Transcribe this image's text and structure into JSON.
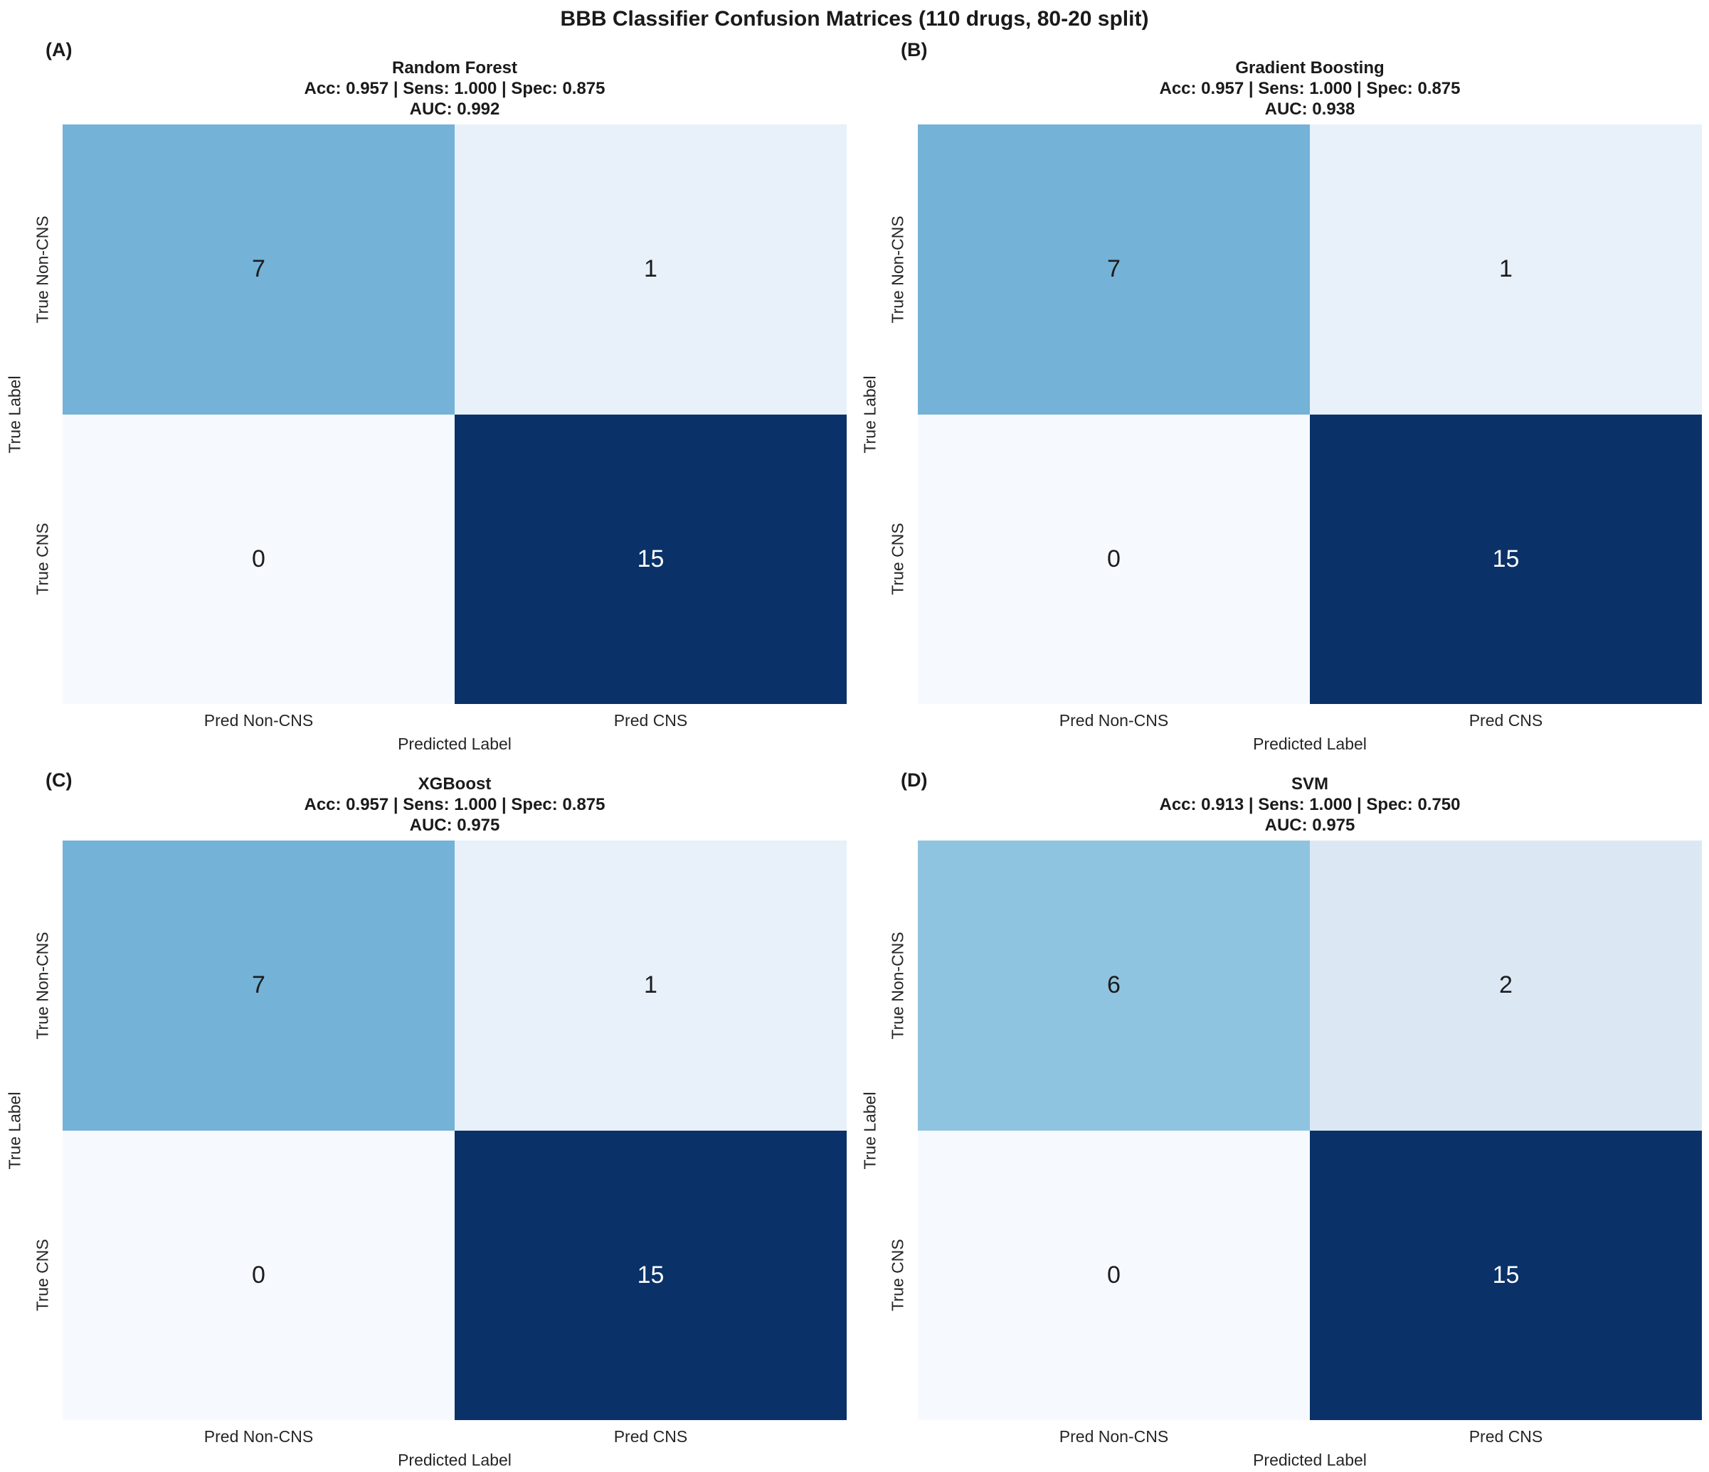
{
  "figure": {
    "title": "BBB Classifier Confusion Matrices (110 drugs, 80-20 split)"
  },
  "axes": {
    "x_ticks": [
      "Pred Non-CNS",
      "Pred CNS"
    ],
    "y_ticks": [
      "True Non-CNS",
      "True CNS"
    ],
    "xlabel": "Predicted Label",
    "ylabel": "True Label"
  },
  "panels": [
    {
      "letter": "(A)",
      "model": "Random Forest",
      "metrics": "Acc: 0.957 | Sens: 1.000 | Spec: 0.875",
      "auc": "AUC: 0.992",
      "cells": [
        {
          "value": "7",
          "bg": "#74b2d7",
          "fg": "#1c1c1c"
        },
        {
          "value": "1",
          "bg": "#e8f0fa",
          "fg": "#1c1c1c"
        },
        {
          "value": "0",
          "bg": "#f6fafe",
          "fg": "#1c1c1c"
        },
        {
          "value": "15",
          "bg": "#0a3168",
          "fg": "#ffffff"
        }
      ]
    },
    {
      "letter": "(B)",
      "model": "Gradient Boosting",
      "metrics": "Acc: 0.957 | Sens: 1.000 | Spec: 0.875",
      "auc": "AUC: 0.938",
      "cells": [
        {
          "value": "7",
          "bg": "#74b2d7",
          "fg": "#1c1c1c"
        },
        {
          "value": "1",
          "bg": "#e8f0fa",
          "fg": "#1c1c1c"
        },
        {
          "value": "0",
          "bg": "#f6fafe",
          "fg": "#1c1c1c"
        },
        {
          "value": "15",
          "bg": "#0a3168",
          "fg": "#ffffff"
        }
      ]
    },
    {
      "letter": "(C)",
      "model": "XGBoost",
      "metrics": "Acc: 0.957 | Sens: 1.000 | Spec: 0.875",
      "auc": "AUC: 0.975",
      "cells": [
        {
          "value": "7",
          "bg": "#74b2d7",
          "fg": "#1c1c1c"
        },
        {
          "value": "1",
          "bg": "#e8f0fa",
          "fg": "#1c1c1c"
        },
        {
          "value": "0",
          "bg": "#f6fafe",
          "fg": "#1c1c1c"
        },
        {
          "value": "15",
          "bg": "#0a3168",
          "fg": "#ffffff"
        }
      ]
    },
    {
      "letter": "(D)",
      "model": "SVM",
      "metrics": "Acc: 0.913 | Sens: 1.000 | Spec: 0.750",
      "auc": "AUC: 0.975",
      "cells": [
        {
          "value": "6",
          "bg": "#8fc4e0",
          "fg": "#1c1c1c"
        },
        {
          "value": "2",
          "bg": "#dbe8f4",
          "fg": "#1c1c1c"
        },
        {
          "value": "0",
          "bg": "#f6fafe",
          "fg": "#1c1c1c"
        },
        {
          "value": "15",
          "bg": "#0a3168",
          "fg": "#ffffff"
        }
      ]
    }
  ],
  "chart_data": [
    {
      "type": "heatmap",
      "panel": "A",
      "title": "Random Forest",
      "x_categories": [
        "Pred Non-CNS",
        "Pred CNS"
      ],
      "y_categories": [
        "True Non-CNS",
        "True CNS"
      ],
      "values": [
        [
          7,
          1
        ],
        [
          0,
          15
        ]
      ],
      "xlabel": "Predicted Label",
      "ylabel": "True Label",
      "colormap": "Blues",
      "value_range": [
        0,
        15
      ],
      "metrics": {
        "accuracy": 0.957,
        "sensitivity": 1.0,
        "specificity": 0.875,
        "auc": 0.992
      }
    },
    {
      "type": "heatmap",
      "panel": "B",
      "title": "Gradient Boosting",
      "x_categories": [
        "Pred Non-CNS",
        "Pred CNS"
      ],
      "y_categories": [
        "True Non-CNS",
        "True CNS"
      ],
      "values": [
        [
          7,
          1
        ],
        [
          0,
          15
        ]
      ],
      "xlabel": "Predicted Label",
      "ylabel": "True Label",
      "colormap": "Blues",
      "value_range": [
        0,
        15
      ],
      "metrics": {
        "accuracy": 0.957,
        "sensitivity": 1.0,
        "specificity": 0.875,
        "auc": 0.938
      }
    },
    {
      "type": "heatmap",
      "panel": "C",
      "title": "XGBoost",
      "x_categories": [
        "Pred Non-CNS",
        "Pred CNS"
      ],
      "y_categories": [
        "True Non-CNS",
        "True CNS"
      ],
      "values": [
        [
          7,
          1
        ],
        [
          0,
          15
        ]
      ],
      "xlabel": "Predicted Label",
      "ylabel": "True Label",
      "colormap": "Blues",
      "value_range": [
        0,
        15
      ],
      "metrics": {
        "accuracy": 0.957,
        "sensitivity": 1.0,
        "specificity": 0.875,
        "auc": 0.975
      }
    },
    {
      "type": "heatmap",
      "panel": "D",
      "title": "SVM",
      "x_categories": [
        "Pred Non-CNS",
        "Pred CNS"
      ],
      "y_categories": [
        "True Non-CNS",
        "True CNS"
      ],
      "values": [
        [
          6,
          2
        ],
        [
          0,
          15
        ]
      ],
      "xlabel": "Predicted Label",
      "ylabel": "True Label",
      "colormap": "Blues",
      "value_range": [
        0,
        15
      ],
      "metrics": {
        "accuracy": 0.913,
        "sensitivity": 1.0,
        "specificity": 0.75,
        "auc": 0.975
      }
    }
  ]
}
